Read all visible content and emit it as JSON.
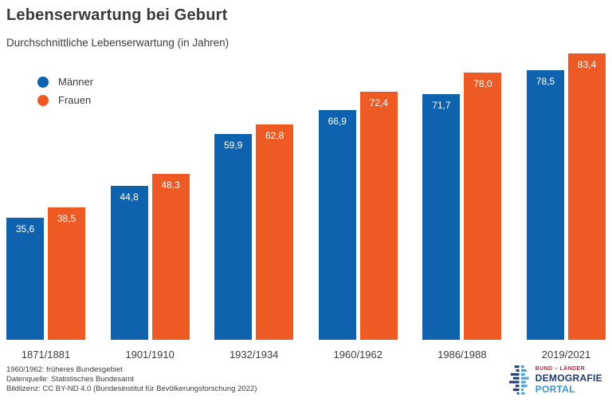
{
  "header": {
    "title": "Lebenserwartung bei Geburt",
    "subtitle": "Durchschnittliche Lebenserwartung (in Jahren)"
  },
  "colors": {
    "male": "#0f63ae",
    "female": "#ee5a24",
    "text": "#3c3c3b"
  },
  "legend": {
    "items": [
      {
        "label": "Männer",
        "color": "#0f63ae"
      },
      {
        "label": "Frauen",
        "color": "#ee5a24"
      }
    ]
  },
  "chart_data": {
    "type": "bar",
    "title": "Lebenserwartung bei Geburt",
    "subtitle": "Durchschnittliche Lebenserwartung (in Jahren)",
    "categories": [
      "1871/1881",
      "1901/1910",
      "1932/1934",
      "1960/1962",
      "1986/1988",
      "2019/2021"
    ],
    "series": [
      {
        "name": "Männer",
        "color": "#0f63ae",
        "values": [
          35.6,
          44.8,
          59.9,
          66.9,
          71.7,
          78.5
        ],
        "labels": [
          "35,6",
          "44,8",
          "59,9",
          "66,9",
          "71,7",
          "78,5"
        ]
      },
      {
        "name": "Frauen",
        "color": "#ee5a24",
        "values": [
          38.5,
          48.3,
          62.8,
          72.4,
          78.0,
          83.4
        ],
        "labels": [
          "38,5",
          "48,3",
          "62,8",
          "72,4",
          "78,0",
          "83,4"
        ]
      }
    ],
    "xlabel": "",
    "ylabel": "",
    "ylim": [
      0,
      85
    ],
    "grid": false,
    "axis_lines": false,
    "legend_position": "top-left",
    "value_label_style": "white, inside bar top, comma decimal separator"
  },
  "footer": {
    "notes": [
      "1960/1962: früheres Bundesgebiet",
      "Datenquelle: Statistisches Bundesamt",
      "Bildlizenz: CC BY-ND 4.0 (Bundesinstitut für Bevölkerungsforschung 2022)"
    ],
    "logo": {
      "line1": "BUND – LÄNDER",
      "line2": "DEMOGRAFIE",
      "line3": "PORTAL",
      "line1_color": "#d11e3e",
      "line2_color": "#1e3a6e",
      "line3_color": "#3e93d0",
      "icon_dark": "#1e3a6e",
      "icon_light": "#4d9fd8"
    }
  }
}
